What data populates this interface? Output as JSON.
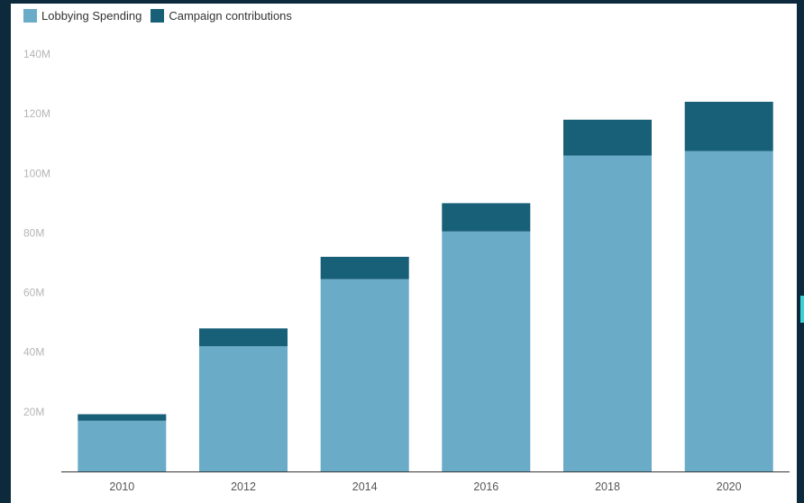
{
  "chart_data": {
    "type": "bar",
    "stacked": true,
    "categories": [
      "2010",
      "2012",
      "2014",
      "2016",
      "2018",
      "2020"
    ],
    "series": [
      {
        "name": "Lobbying Spending",
        "values": [
          17,
          42,
          64.5,
          80.5,
          106,
          107.5
        ]
      },
      {
        "name": "Campaign contributions",
        "values": [
          2.2,
          6,
          7.5,
          9.5,
          12,
          16.5
        ]
      }
    ],
    "colors": [
      "#6aabc8",
      "#185f78"
    ],
    "ylim": [
      0,
      140
    ],
    "yticks": [
      {
        "value": 20,
        "label": "20M"
      },
      {
        "value": 40,
        "label": "40M"
      },
      {
        "value": 60,
        "label": "60M"
      },
      {
        "value": 80,
        "label": "80M"
      },
      {
        "value": 100,
        "label": "100M"
      },
      {
        "value": 120,
        "label": "120M"
      },
      {
        "value": 140,
        "label": "140M"
      }
    ],
    "legend_position": "top-left",
    "grid": false
  }
}
